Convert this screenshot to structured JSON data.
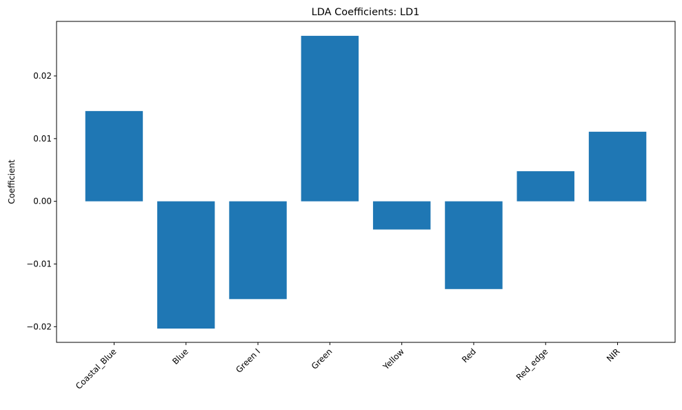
{
  "chart_data": {
    "type": "bar",
    "title": "LDA Coefficients: LD1",
    "xlabel": "",
    "ylabel": "Coefficient",
    "categories": [
      "Coastal_Blue",
      "Blue",
      "Green I",
      "Green",
      "Yellow",
      "Red",
      "Red_edge",
      "NIR"
    ],
    "values": [
      0.0144,
      -0.0203,
      -0.0156,
      0.0264,
      -0.0045,
      -0.014,
      0.0048,
      0.0111
    ],
    "ylim": [
      -0.0225,
      0.0287
    ],
    "yticks": [
      -0.02,
      -0.01,
      0.0,
      0.01,
      0.02
    ],
    "ytick_labels": [
      "−0.02",
      "−0.01",
      "0.00",
      "0.01",
      "0.02"
    ],
    "grid": false,
    "legend": "none",
    "bar_color": "#1f77b4",
    "xtick_rotation_deg": 45
  }
}
